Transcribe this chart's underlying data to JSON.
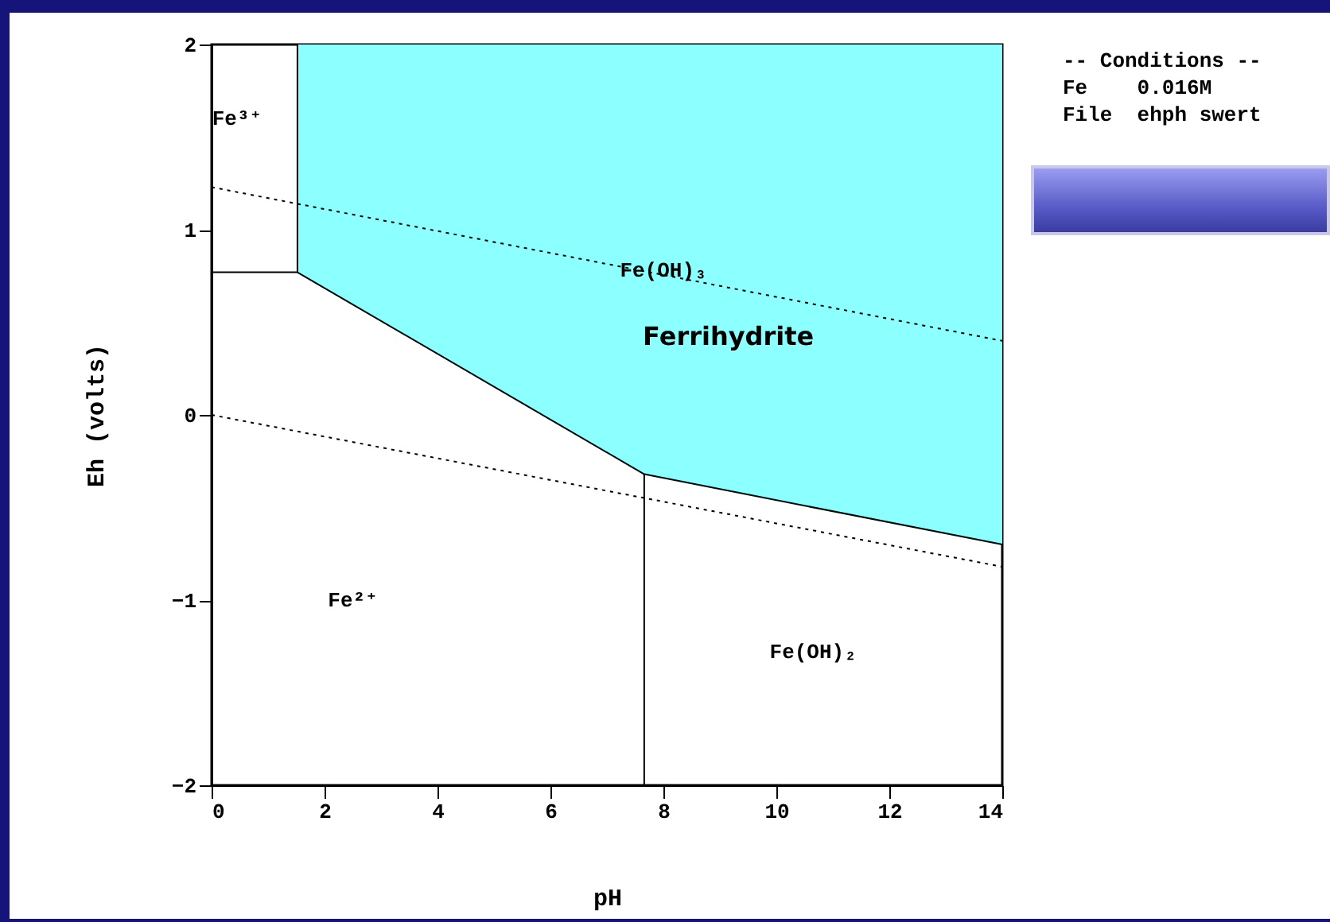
{
  "chart_data": {
    "type": "line",
    "xlabel": "pH",
    "ylabel": "Eh (volts)",
    "xlim": [
      0,
      14
    ],
    "xticks": [
      0,
      2,
      4,
      6,
      8,
      10,
      12,
      14
    ],
    "ylim": [
      -2,
      2
    ],
    "yticks": [
      -2,
      -1,
      0,
      1,
      2
    ],
    "series": [
      {
        "color": "#000000",
        "x": [
          1.52,
          7.66,
          14
        ],
        "values": [
          0.77,
          -0.32,
          -0.7
        ],
        "lower": [
          0.77,
          -0.32,
          -0.7
        ],
        "upper": [
          2,
          2,
          2
        ],
        "colors": [
          "#8cffff",
          "#8cffff",
          "#8cffff"
        ],
        "line_style": "solid"
      },
      {
        "color": "#000000",
        "x": [
          1.52,
          1.52
        ],
        "values": [
          0.77,
          2
        ],
        "line_style": "solid"
      },
      {
        "color": "#000000",
        "x": [
          0,
          1.52
        ],
        "values": [
          0.77,
          0.77
        ],
        "line_style": "solid"
      },
      {
        "color": "#000000",
        "x": [
          7.66,
          7.66
        ],
        "values": [
          -2,
          -0.32
        ],
        "line_style": "solid"
      },
      {
        "color": "#000000",
        "x": [
          0,
          14
        ],
        "values": [
          1.23,
          0.4
        ],
        "line_style": "dotted"
      },
      {
        "color": "#000000",
        "x": [
          0,
          14
        ],
        "values": [
          0,
          -0.82
        ],
        "line_style": "dotted"
      }
    ],
    "annotations": [
      "Fe³⁺",
      "Fe²⁺",
      {
        "text": "Fe(OH)₃",
        "x": 8.0,
        "y": 0.78
      },
      "Ferrihydrite",
      "Fe(OH)₂",
      "-- Conditions --",
      "Fe    0.016M",
      "File  ehph swert"
    ]
  }
}
